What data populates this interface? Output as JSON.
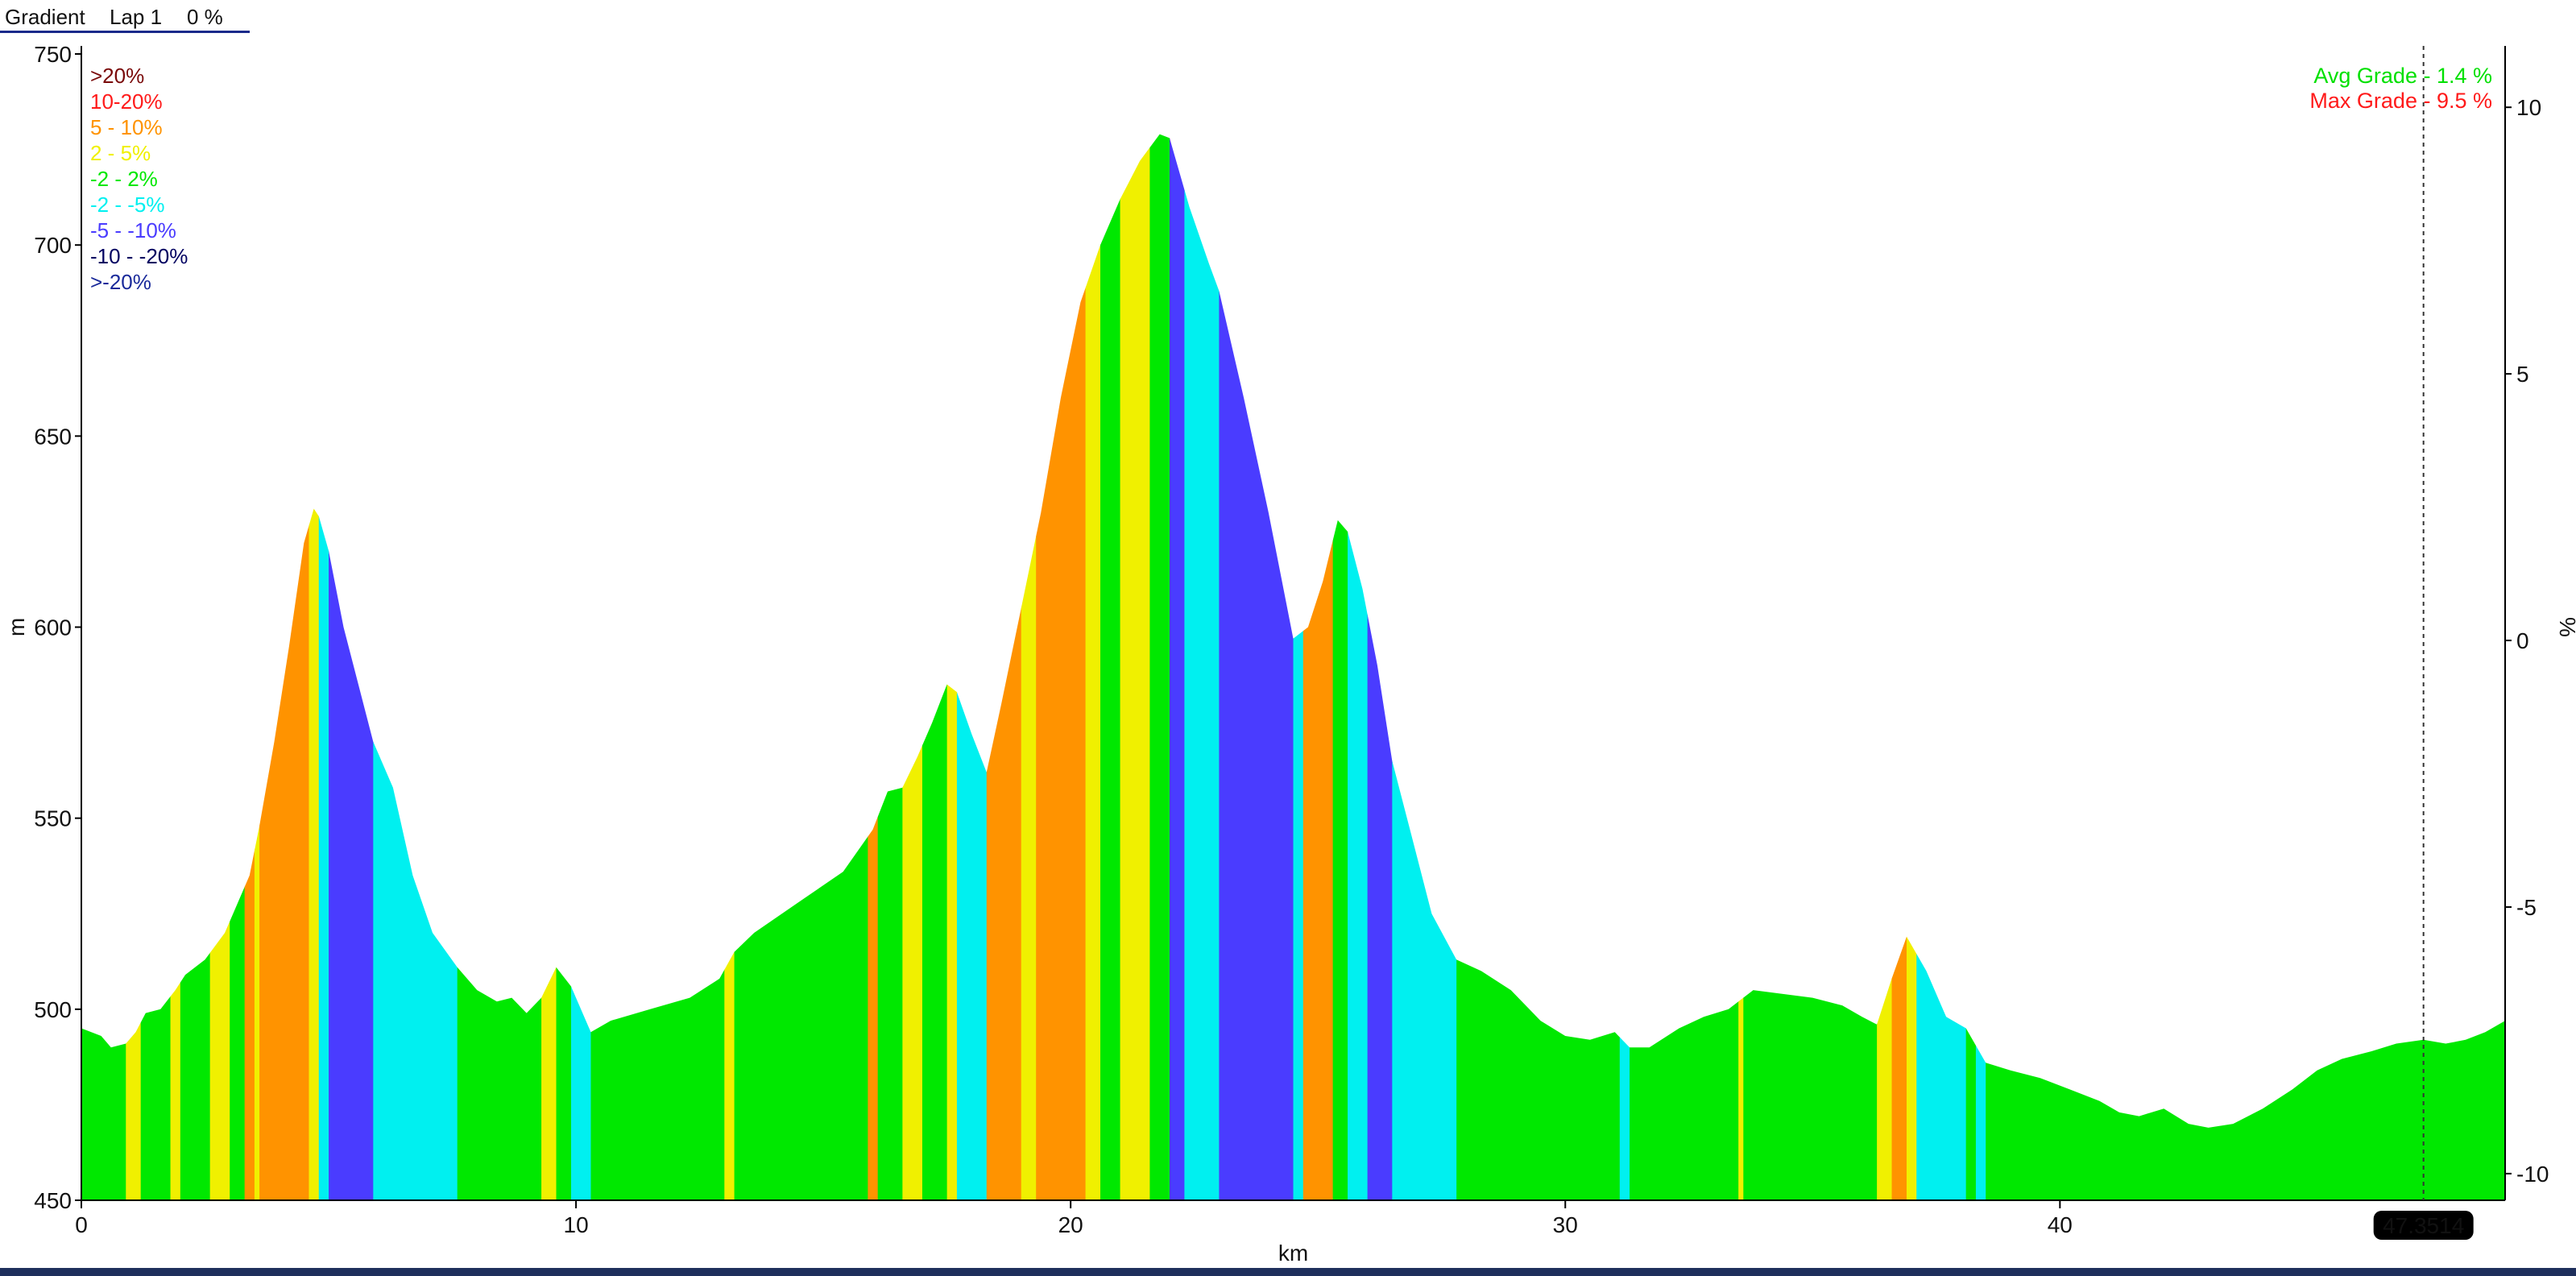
{
  "header": {
    "metric": "Gradient",
    "lap": "Lap 1",
    "value": "0 %"
  },
  "chart_data": {
    "type": "area",
    "xlabel": "km",
    "ylabel": "m",
    "y2label": "%",
    "xlim": [
      0,
      49
    ],
    "ylim": [
      450,
      750
    ],
    "y2lim": [
      -10.5,
      11
    ],
    "xticks": [
      0,
      10,
      20,
      30,
      40
    ],
    "yticks": [
      450,
      500,
      550,
      600,
      650,
      700,
      750
    ],
    "y2ticks": [
      10,
      5,
      0,
      -5,
      -10
    ],
    "cursor": {
      "x": 47.35,
      "label": "47.3514"
    },
    "legend": [
      {
        "label": ">20%",
        "color": "#7a0a0a"
      },
      {
        "label": "10-20%",
        "color": "#ff1a1a"
      },
      {
        "label": "5 - 10%",
        "color": "#ff9300"
      },
      {
        "label": "2 - 5%",
        "color": "#f0f000"
      },
      {
        "label": "-2 - 2%",
        "color": "#00e800"
      },
      {
        "label": "-2 - -5%",
        "color": "#00f0f0"
      },
      {
        "label": "-5 - -10%",
        "color": "#4a3cff"
      },
      {
        "label": "-10 - -20%",
        "color": "#000060"
      },
      {
        "label": ">-20%",
        "color": "#1a2a9a"
      }
    ],
    "stats": [
      {
        "label": "Avg Grade - 1.4 %",
        "color": "#00e000"
      },
      {
        "label": "Max Grade - 9.5 %",
        "color": "#ff1a1a"
      }
    ],
    "profile": [
      [
        0,
        495
      ],
      [
        0.4,
        493
      ],
      [
        0.6,
        490
      ],
      [
        0.9,
        491
      ],
      [
        1.1,
        494
      ],
      [
        1.3,
        499
      ],
      [
        1.6,
        500
      ],
      [
        1.9,
        505
      ],
      [
        2.1,
        509
      ],
      [
        2.5,
        513
      ],
      [
        2.9,
        520
      ],
      [
        3.1,
        526
      ],
      [
        3.4,
        535
      ],
      [
        3.6,
        548
      ],
      [
        3.9,
        570
      ],
      [
        4.2,
        595
      ],
      [
        4.5,
        622
      ],
      [
        4.7,
        631
      ],
      [
        4.8,
        629
      ],
      [
        5.0,
        620
      ],
      [
        5.3,
        600
      ],
      [
        5.6,
        585
      ],
      [
        5.9,
        570
      ],
      [
        6.3,
        558
      ],
      [
        6.7,
        535
      ],
      [
        7.1,
        520
      ],
      [
        7.6,
        511
      ],
      [
        8.0,
        505
      ],
      [
        8.4,
        502
      ],
      [
        8.7,
        503
      ],
      [
        9.0,
        499
      ],
      [
        9.3,
        503
      ],
      [
        9.6,
        511
      ],
      [
        9.9,
        506
      ],
      [
        10.3,
        494
      ],
      [
        10.7,
        497
      ],
      [
        11.5,
        500
      ],
      [
        12.3,
        503
      ],
      [
        12.9,
        508
      ],
      [
        13.2,
        515
      ],
      [
        13.6,
        520
      ],
      [
        14.5,
        528
      ],
      [
        15.4,
        536
      ],
      [
        16.0,
        547
      ],
      [
        16.3,
        557
      ],
      [
        16.6,
        558
      ],
      [
        16.9,
        566
      ],
      [
        17.2,
        575
      ],
      [
        17.5,
        585
      ],
      [
        17.7,
        583
      ],
      [
        18.0,
        572
      ],
      [
        18.3,
        562
      ],
      [
        18.6,
        580
      ],
      [
        19.0,
        605
      ],
      [
        19.4,
        630
      ],
      [
        19.8,
        660
      ],
      [
        20.2,
        685
      ],
      [
        20.6,
        700
      ],
      [
        21.0,
        712
      ],
      [
        21.4,
        722
      ],
      [
        21.8,
        729
      ],
      [
        22.0,
        728
      ],
      [
        22.4,
        710
      ],
      [
        22.8,
        695
      ],
      [
        23.0,
        688
      ],
      [
        23.5,
        660
      ],
      [
        24.0,
        630
      ],
      [
        24.5,
        597
      ],
      [
        24.8,
        600
      ],
      [
        25.1,
        612
      ],
      [
        25.4,
        628
      ],
      [
        25.6,
        625
      ],
      [
        25.9,
        610
      ],
      [
        26.2,
        590
      ],
      [
        26.5,
        565
      ],
      [
        26.9,
        545
      ],
      [
        27.3,
        525
      ],
      [
        27.8,
        513
      ],
      [
        28.3,
        510
      ],
      [
        28.9,
        505
      ],
      [
        29.5,
        497
      ],
      [
        30.0,
        493
      ],
      [
        30.5,
        492
      ],
      [
        31.0,
        494
      ],
      [
        31.3,
        490
      ],
      [
        31.7,
        490
      ],
      [
        32.3,
        495
      ],
      [
        32.8,
        498
      ],
      [
        33.3,
        500
      ],
      [
        33.8,
        505
      ],
      [
        34.4,
        504
      ],
      [
        35.0,
        503
      ],
      [
        35.6,
        501
      ],
      [
        36.0,
        498
      ],
      [
        36.3,
        496
      ],
      [
        36.6,
        508
      ],
      [
        36.9,
        519
      ],
      [
        37.3,
        510
      ],
      [
        37.7,
        498
      ],
      [
        38.1,
        495
      ],
      [
        38.5,
        486
      ],
      [
        39.0,
        484
      ],
      [
        39.6,
        482
      ],
      [
        40.2,
        479
      ],
      [
        40.8,
        476
      ],
      [
        41.2,
        473
      ],
      [
        41.6,
        472
      ],
      [
        42.1,
        474
      ],
      [
        42.6,
        470
      ],
      [
        43.0,
        469
      ],
      [
        43.5,
        470
      ],
      [
        44.1,
        474
      ],
      [
        44.7,
        479
      ],
      [
        45.2,
        484
      ],
      [
        45.7,
        487
      ],
      [
        46.3,
        489
      ],
      [
        46.8,
        491
      ],
      [
        47.35,
        492
      ],
      [
        47.8,
        491
      ],
      [
        48.2,
        492
      ],
      [
        48.6,
        494
      ],
      [
        49.0,
        497
      ]
    ],
    "bands": [
      [
        0,
        0.9,
        "#00e800"
      ],
      [
        0.9,
        1.2,
        "#f0f000"
      ],
      [
        1.2,
        1.8,
        "#00e800"
      ],
      [
        1.8,
        2.0,
        "#f0f000"
      ],
      [
        2.0,
        2.6,
        "#00e800"
      ],
      [
        2.6,
        3.0,
        "#f0f000"
      ],
      [
        3.0,
        3.3,
        "#00e800"
      ],
      [
        3.3,
        3.5,
        "#ff9300"
      ],
      [
        3.5,
        3.6,
        "#f0f000"
      ],
      [
        3.6,
        4.6,
        "#ff9300"
      ],
      [
        4.6,
        4.8,
        "#f0f000"
      ],
      [
        4.8,
        5.0,
        "#00f0f0"
      ],
      [
        5.0,
        5.9,
        "#4a3cff"
      ],
      [
        5.9,
        7.6,
        "#00f0f0"
      ],
      [
        7.6,
        9.3,
        "#00e800"
      ],
      [
        9.3,
        9.6,
        "#f0f000"
      ],
      [
        9.6,
        9.9,
        "#00e800"
      ],
      [
        9.9,
        10.3,
        "#00f0f0"
      ],
      [
        10.3,
        13.0,
        "#00e800"
      ],
      [
        13.0,
        13.2,
        "#f0f000"
      ],
      [
        13.2,
        15.9,
        "#00e800"
      ],
      [
        15.9,
        16.1,
        "#ff9300"
      ],
      [
        16.1,
        16.6,
        "#00e800"
      ],
      [
        16.6,
        17.0,
        "#f0f000"
      ],
      [
        17.0,
        17.5,
        "#00e800"
      ],
      [
        17.5,
        17.7,
        "#f0f000"
      ],
      [
        17.7,
        18.3,
        "#00f0f0"
      ],
      [
        18.3,
        19.0,
        "#ff9300"
      ],
      [
        19.0,
        19.3,
        "#f0f000"
      ],
      [
        19.3,
        20.3,
        "#ff9300"
      ],
      [
        20.3,
        20.6,
        "#f0f000"
      ],
      [
        20.6,
        21.0,
        "#00e800"
      ],
      [
        21.0,
        21.6,
        "#f0f000"
      ],
      [
        21.6,
        22.0,
        "#00e800"
      ],
      [
        22.0,
        22.3,
        "#4a3cff"
      ],
      [
        22.3,
        23.0,
        "#00f0f0"
      ],
      [
        23.0,
        24.5,
        "#4a3cff"
      ],
      [
        24.5,
        24.7,
        "#00f0f0"
      ],
      [
        24.7,
        25.3,
        "#ff9300"
      ],
      [
        25.3,
        25.6,
        "#00e800"
      ],
      [
        25.6,
        26.0,
        "#00f0f0"
      ],
      [
        26.0,
        26.5,
        "#4a3cff"
      ],
      [
        26.5,
        27.8,
        "#00f0f0"
      ],
      [
        27.8,
        31.1,
        "#00e800"
      ],
      [
        31.1,
        31.3,
        "#00f0f0"
      ],
      [
        31.3,
        33.5,
        "#00e800"
      ],
      [
        33.5,
        33.6,
        "#f0f000"
      ],
      [
        33.6,
        36.3,
        "#00e800"
      ],
      [
        36.3,
        36.6,
        "#f0f000"
      ],
      [
        36.6,
        36.9,
        "#ff9300"
      ],
      [
        36.9,
        37.1,
        "#f0f000"
      ],
      [
        37.1,
        38.1,
        "#00f0f0"
      ],
      [
        38.1,
        38.3,
        "#00e800"
      ],
      [
        38.3,
        38.5,
        "#00f0f0"
      ],
      [
        38.5,
        49.0,
        "#00e800"
      ]
    ]
  }
}
